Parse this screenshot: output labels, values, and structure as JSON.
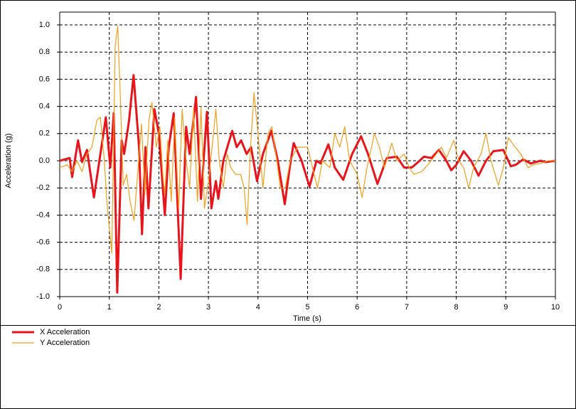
{
  "chart_data": {
    "type": "line",
    "x_label": "Time (s)",
    "y_label": "Acceleration (g)",
    "xlim": [
      0,
      10
    ],
    "ylim": [
      -1,
      1
    ],
    "xticks": [
      0,
      1,
      2,
      3,
      4,
      5,
      6,
      7,
      8,
      9,
      10
    ],
    "yticks": [
      {
        "value": 1,
        "label": "1.0"
      },
      0.8,
      0.6,
      0.4,
      0.2,
      {
        "value": 0,
        "label": "0.0"
      },
      -0.2,
      -0.4,
      -0.6,
      -0.8,
      {
        "value": -1,
        "label": "-1.0"
      }
    ],
    "grid": true,
    "legend": "bottom-left",
    "series": [
      {
        "name": "X Acceleration",
        "color": "#e8141c",
        "x": [
          0,
          0.1,
          0.2,
          0.25,
          0.37,
          0.45,
          0.55,
          0.69,
          0.8,
          0.93,
          1.02,
          1.09,
          1.16,
          1.25,
          1.3,
          1.4,
          1.49,
          1.6,
          1.66,
          1.73,
          1.79,
          1.91,
          2.0,
          2.12,
          2.2,
          2.3,
          2.44,
          2.55,
          2.62,
          2.75,
          2.85,
          2.97,
          3.06,
          3.15,
          3.2,
          3.3,
          3.48,
          3.57,
          3.66,
          3.77,
          3.86,
          3.98,
          4.1,
          4.27,
          4.4,
          4.54,
          4.64,
          4.72,
          4.88,
          5.04,
          5.18,
          5.26,
          5.42,
          5.55,
          5.72,
          5.9,
          6.08,
          6.22,
          6.41,
          6.6,
          6.8,
          6.95,
          7.1,
          7.2,
          7.35,
          7.5,
          7.65,
          7.8,
          7.9,
          8.0,
          8.15,
          8.3,
          8.45,
          8.6,
          8.75,
          8.95,
          9.1,
          9.2,
          9.35,
          9.5,
          9.6,
          9.7,
          9.8,
          10
        ],
        "values": [
          0,
          0.01,
          0.02,
          -0.12,
          0.15,
          -0.01,
          0.08,
          -0.27,
          0.0,
          0.32,
          -0.05,
          0.35,
          -0.97,
          0.15,
          0.05,
          0.3,
          0.63,
          0.1,
          -0.54,
          0.1,
          -0.35,
          0.38,
          0.2,
          -0.4,
          0.1,
          0.35,
          -0.87,
          0.25,
          0.05,
          0.47,
          -0.28,
          0.36,
          -0.35,
          -0.15,
          -0.28,
          0.0,
          0.22,
          0.1,
          0.15,
          0.05,
          0.1,
          -0.15,
          0.05,
          0.22,
          0.0,
          -0.32,
          -0.05,
          0.13,
          0.0,
          -0.19,
          0.0,
          -0.02,
          0.12,
          -0.05,
          -0.14,
          0.05,
          0.18,
          0.05,
          -0.17,
          0.02,
          0.03,
          -0.05,
          -0.05,
          -0.02,
          0.03,
          0.02,
          0.08,
          0.0,
          -0.07,
          -0.03,
          0.07,
          0.0,
          -0.11,
          0.0,
          0.07,
          0.08,
          -0.04,
          -0.03,
          0.01,
          -0.02,
          -0.01,
          0.0,
          -0.01,
          0.0
        ]
      },
      {
        "name": "Y Acceleration",
        "color": "#f0a020",
        "x": [
          0,
          0.15,
          0.25,
          0.35,
          0.45,
          0.55,
          0.65,
          0.75,
          0.82,
          0.9,
          0.95,
          1.05,
          1.12,
          1.17,
          1.22,
          1.28,
          1.35,
          1.42,
          1.5,
          1.58,
          1.65,
          1.72,
          1.8,
          1.86,
          1.95,
          2.02,
          2.08,
          2.12,
          2.18,
          2.25,
          2.32,
          2.4,
          2.47,
          2.55,
          2.62,
          2.7,
          2.78,
          2.85,
          2.92,
          3.0,
          3.08,
          3.15,
          3.22,
          3.3,
          3.38,
          3.45,
          3.55,
          3.65,
          3.72,
          3.78,
          3.85,
          3.92,
          4.0,
          4.1,
          4.2,
          4.28,
          4.38,
          4.45,
          4.55,
          4.65,
          4.8,
          4.9,
          5.0,
          5.1,
          5.2,
          5.3,
          5.45,
          5.55,
          5.65,
          5.75,
          5.85,
          6.0,
          6.1,
          6.2,
          6.35,
          6.45,
          6.55,
          6.7,
          6.8,
          6.95,
          7.05,
          7.15,
          7.3,
          7.45,
          7.6,
          7.7,
          7.8,
          7.95,
          8.05,
          8.15,
          8.25,
          8.35,
          8.5,
          8.6,
          8.7,
          8.85,
          8.95,
          9.05,
          9.15,
          9.3,
          9.45,
          9.55,
          9.7,
          9.85,
          10
        ],
        "values": [
          -0.05,
          -0.03,
          -0.08,
          0.0,
          -0.08,
          0.05,
          0.1,
          0.3,
          0.32,
          0.0,
          -0.3,
          -0.68,
          0.85,
          0.99,
          0.5,
          -0.18,
          -0.1,
          -0.3,
          -0.44,
          -0.05,
          0.27,
          -0.25,
          0.3,
          0.43,
          0.1,
          0.25,
          -0.1,
          -0.25,
          0.15,
          -0.3,
          0.32,
          -0.35,
          0.38,
          0.0,
          -0.2,
          0.38,
          -0.3,
          0.4,
          -0.35,
          -0.15,
          0.12,
          0.38,
          0.0,
          -0.2,
          0.05,
          -0.05,
          -0.1,
          -0.1,
          -0.2,
          -0.47,
          0.1,
          0.5,
          0.2,
          -0.2,
          0.2,
          0.25,
          0.0,
          -0.2,
          -0.2,
          0.0,
          0.1,
          0.1,
          0.1,
          -0.05,
          -0.2,
          0.0,
          -0.05,
          0.2,
          0.1,
          0.25,
          0.0,
          -0.1,
          -0.27,
          -0.05,
          0.2,
          0.1,
          -0.05,
          0.13,
          0.0,
          0.05,
          -0.05,
          -0.1,
          -0.08,
          -0.02,
          0.05,
          0.1,
          0.02,
          0.15,
          0.0,
          -0.05,
          -0.2,
          -0.05,
          0.05,
          0.2,
          0.0,
          -0.18,
          -0.05,
          0.17,
          0.12,
          0.05,
          -0.05,
          -0.03,
          -0.02,
          0.0,
          0.0
        ]
      }
    ]
  }
}
